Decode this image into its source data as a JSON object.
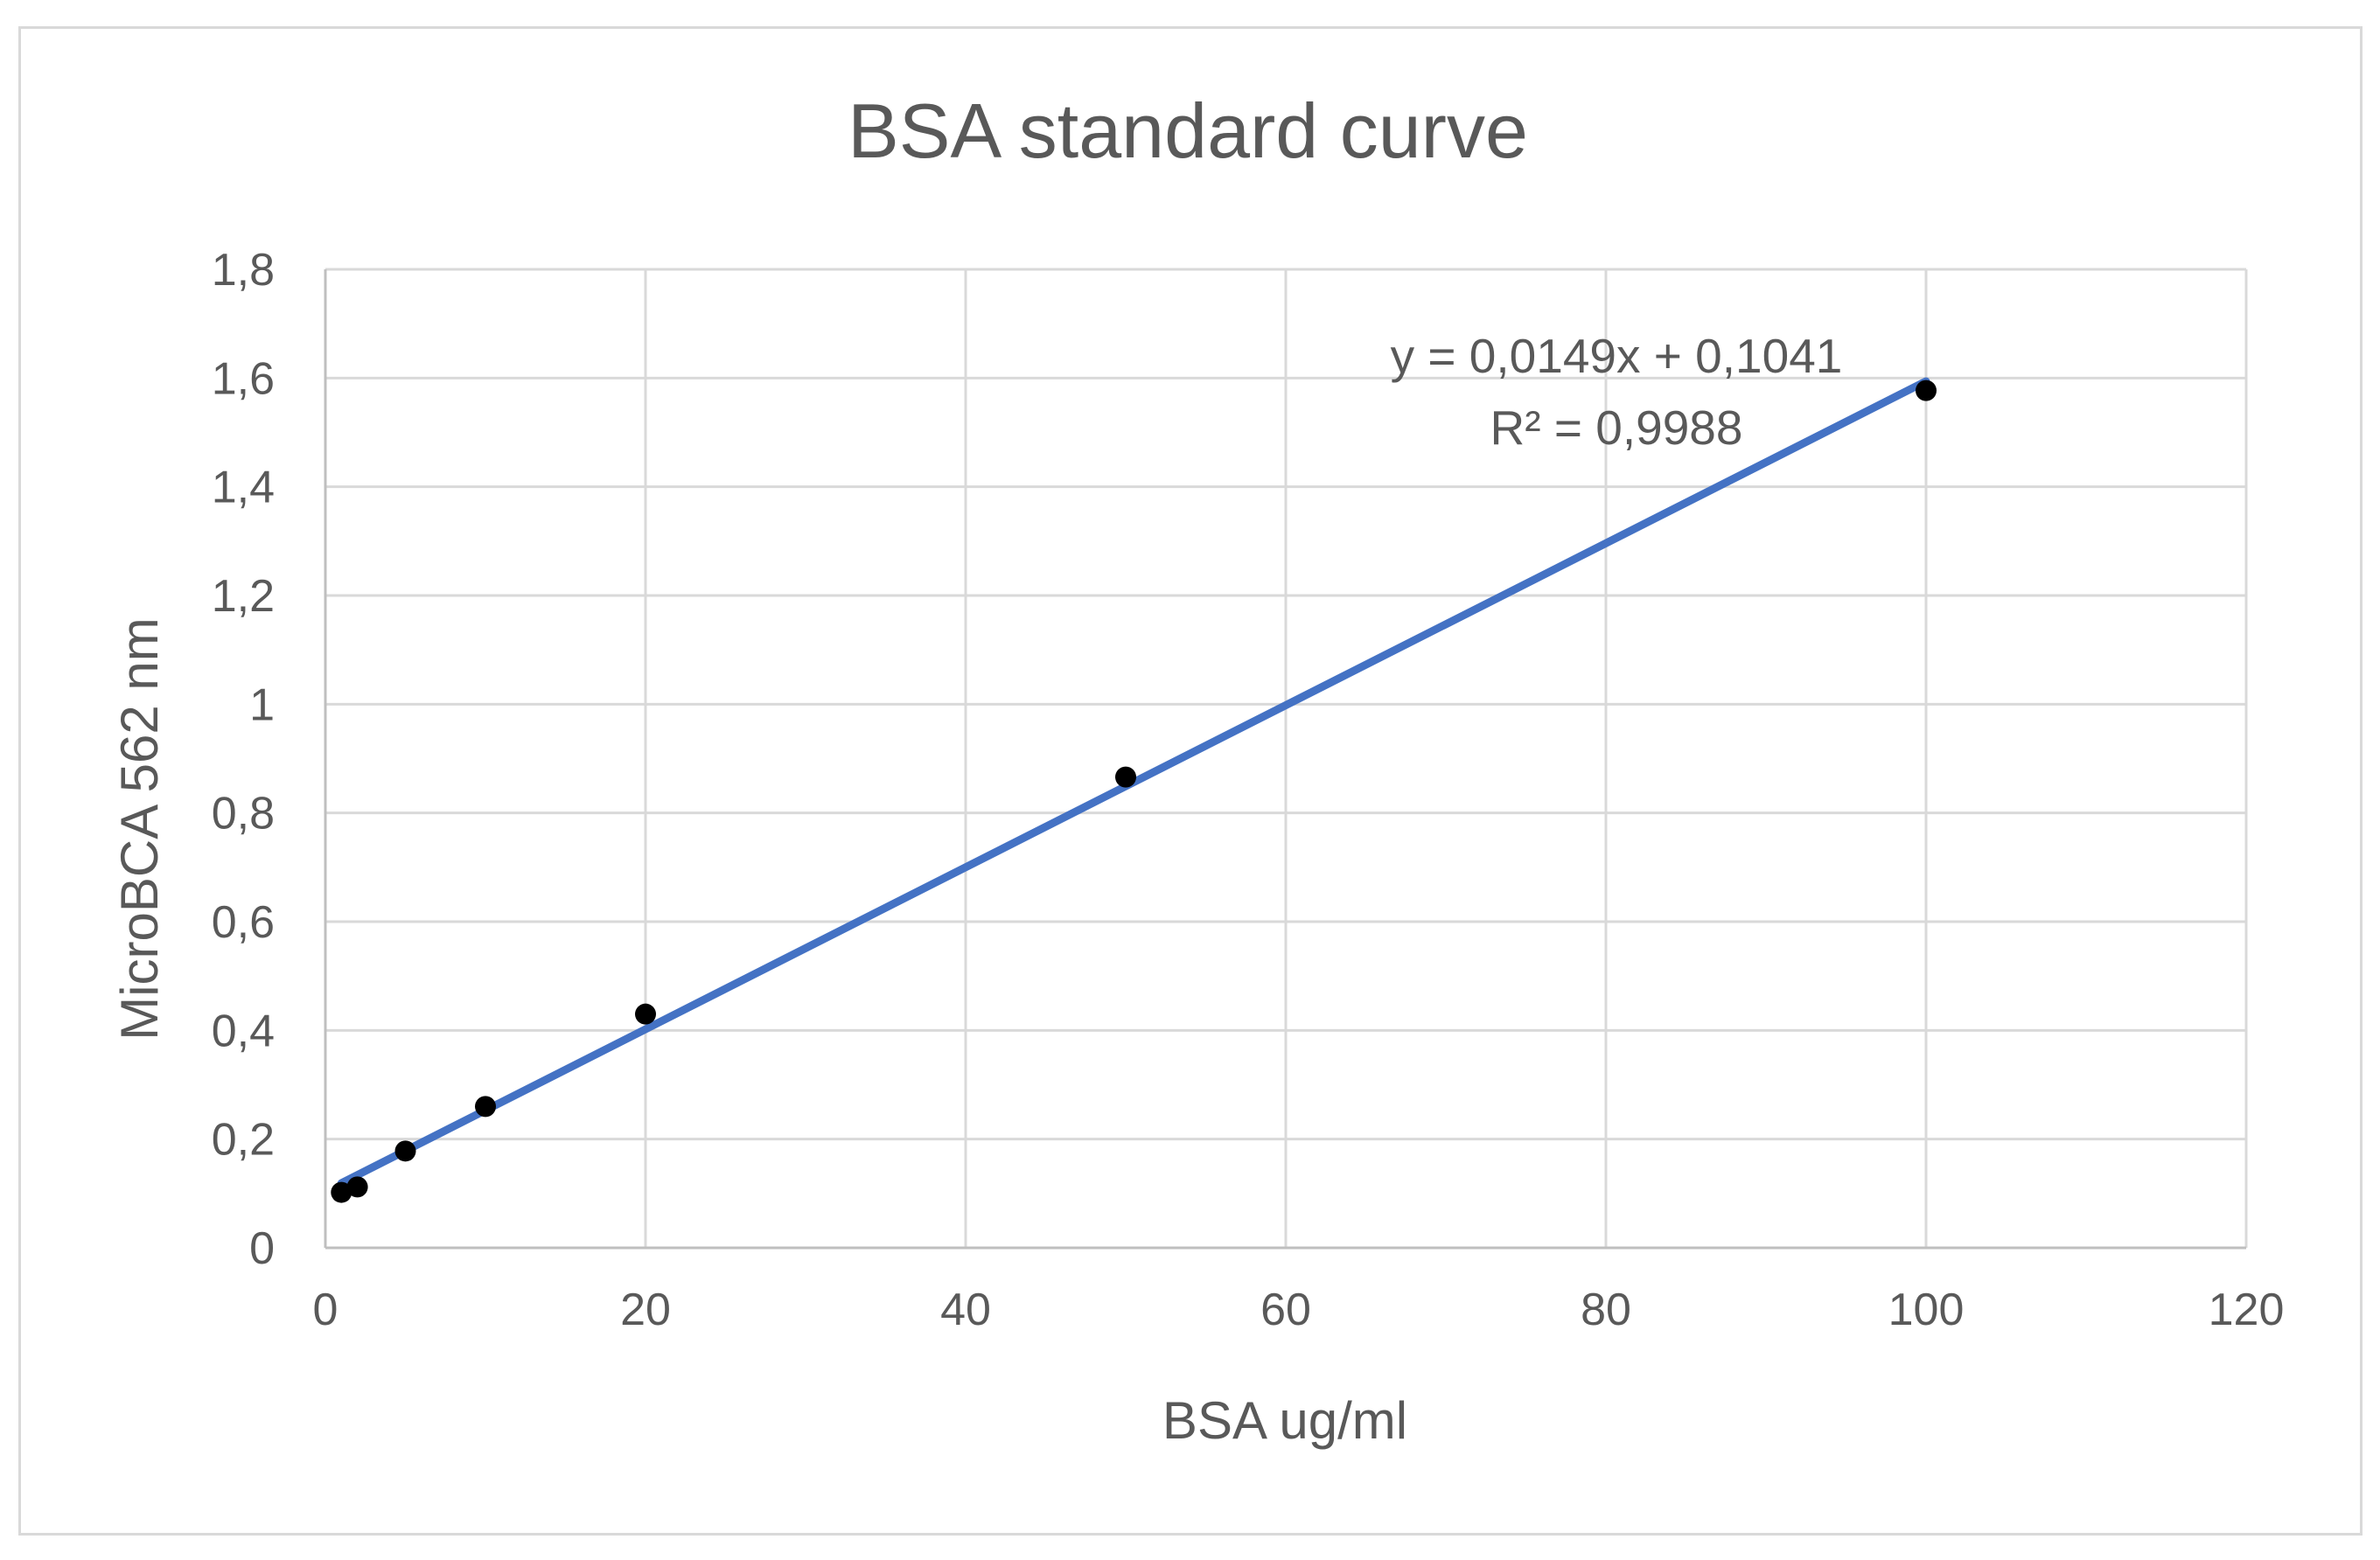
{
  "chart_data": {
    "type": "scatter",
    "title": "BSA standard curve",
    "xlabel": "BSA ug/ml",
    "ylabel": "MicroBCA 562 nm",
    "xlim": [
      0,
      120
    ],
    "ylim": [
      0,
      1.8
    ],
    "x_ticks": [
      "0",
      "20",
      "40",
      "60",
      "80",
      "100",
      "120"
    ],
    "x_tick_values": [
      0,
      20,
      40,
      60,
      80,
      100,
      120
    ],
    "y_ticks": [
      "0",
      "0,2",
      "0,4",
      "0,6",
      "0,8",
      "1",
      "1,2",
      "1,4",
      "1,6",
      "1,8"
    ],
    "y_tick_values": [
      0,
      0.2,
      0.4,
      0.6,
      0.8,
      1.0,
      1.2,
      1.4,
      1.6,
      1.8
    ],
    "grid": true,
    "series": [
      {
        "name": "BSA",
        "x": [
          1,
          2,
          5,
          10,
          20,
          50,
          100
        ],
        "y": [
          0.102,
          0.112,
          0.178,
          0.26,
          0.43,
          0.866,
          1.577
        ],
        "color": "#000000"
      }
    ],
    "trendline": {
      "slope": 0.0149,
      "intercept": 0.1041,
      "x_range": [
        1,
        100
      ],
      "color": "#4472c4",
      "equation_label": "y = 0,0149x + 0,1041",
      "r2_label": "R² = 0,9988"
    }
  }
}
